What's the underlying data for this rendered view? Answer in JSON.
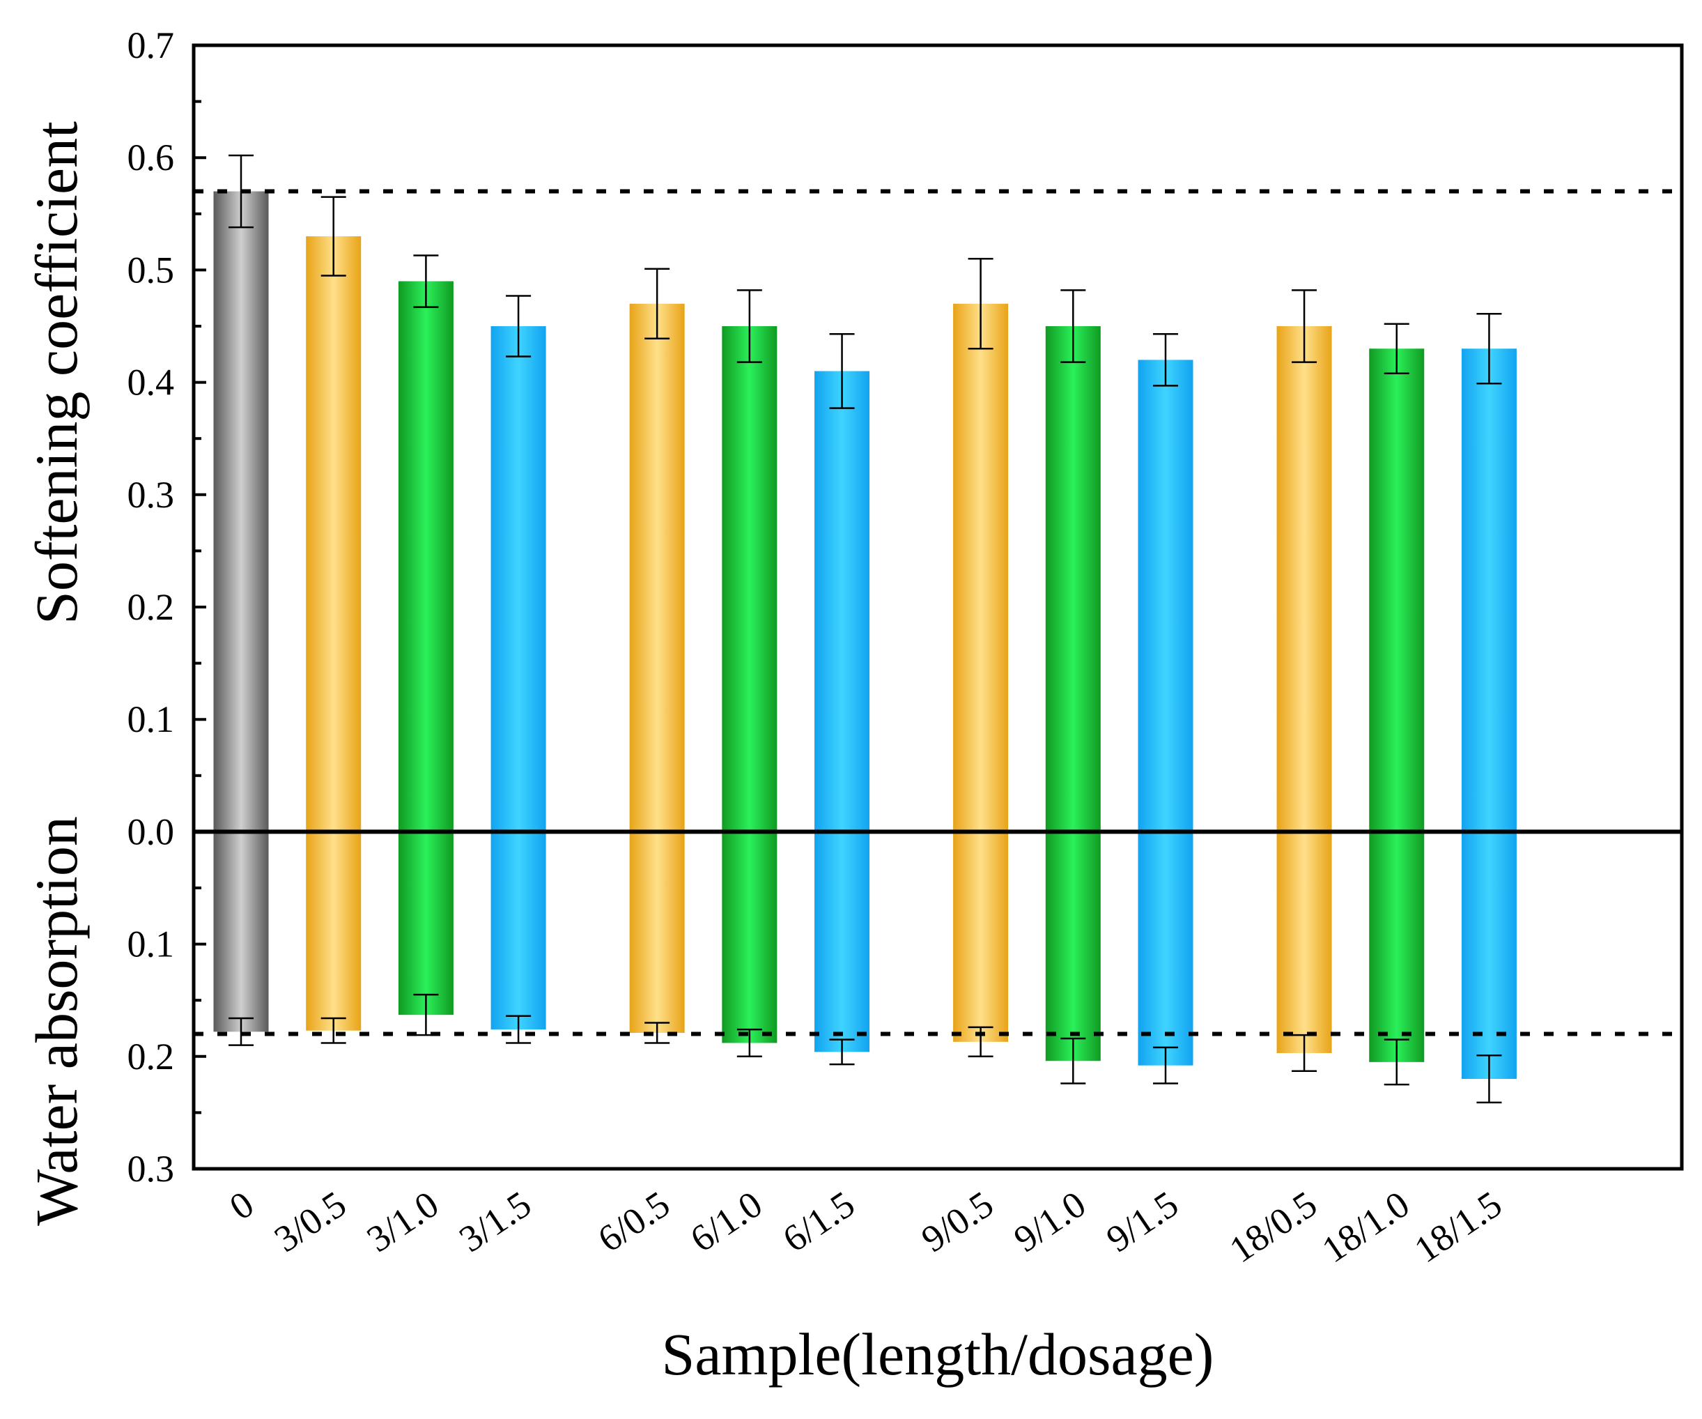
{
  "chart_data": {
    "type": "bar",
    "title": "",
    "xlabel": "Sample(length/dosage)",
    "ylabel_top": "Softening coefficient",
    "ylabel_bottom": "Water absorption",
    "ylim": [
      -0.3,
      0.7
    ],
    "y_tick_labels": [
      "0.7",
      "0.6",
      "0.5",
      "0.4",
      "0.3",
      "0.2",
      "0.1",
      "0.0",
      "0.1",
      "0.2",
      "0.3"
    ],
    "y_tick_values": [
      0.7,
      0.6,
      0.5,
      0.4,
      0.3,
      0.2,
      0.1,
      0.0,
      -0.1,
      -0.2,
      -0.3
    ],
    "categories": [
      "0",
      "3/0.5",
      "3/1.0",
      "3/1.5",
      "6/0.5",
      "6/1.0",
      "6/1.5",
      "9/0.5",
      "9/1.0",
      "9/1.5",
      "18/0.5",
      "18/1.0",
      "18/1.5"
    ],
    "positions": [
      0,
      1,
      2,
      3,
      4.5,
      5.5,
      6.5,
      8,
      9,
      10,
      11.5,
      12.5,
      13.5
    ],
    "colors": [
      "gray",
      "orange",
      "green",
      "blue",
      "orange",
      "green",
      "blue",
      "orange",
      "green",
      "blue",
      "orange",
      "green",
      "blue"
    ],
    "series": [
      {
        "name": "Softening coefficient",
        "values": [
          0.57,
          0.53,
          0.49,
          0.45,
          0.47,
          0.45,
          0.41,
          0.47,
          0.45,
          0.42,
          0.45,
          0.43,
          0.43
        ],
        "errors": [
          0.032,
          0.035,
          0.023,
          0.027,
          0.031,
          0.032,
          0.033,
          0.04,
          0.032,
          0.023,
          0.032,
          0.022,
          0.031
        ]
      },
      {
        "name": "Water absorption",
        "values": [
          0.178,
          0.177,
          0.163,
          0.176,
          0.179,
          0.188,
          0.196,
          0.187,
          0.204,
          0.208,
          0.197,
          0.205,
          0.22
        ],
        "errors": [
          0.012,
          0.011,
          0.018,
          0.012,
          0.009,
          0.012,
          0.011,
          0.013,
          0.02,
          0.016,
          0.016,
          0.02,
          0.021
        ]
      }
    ],
    "reference_lines": [
      0.57,
      -0.18
    ],
    "palette": {
      "gray": [
        "#5a5a5a",
        "#cfcfcf",
        "#5a5a5a"
      ],
      "orange": [
        "#e8a317",
        "#ffe08a",
        "#e8a317"
      ],
      "green": [
        "#109a22",
        "#2bf05a",
        "#109a22"
      ],
      "blue": [
        "#12a3f0",
        "#3fd4ff",
        "#12a3f0"
      ]
    }
  }
}
